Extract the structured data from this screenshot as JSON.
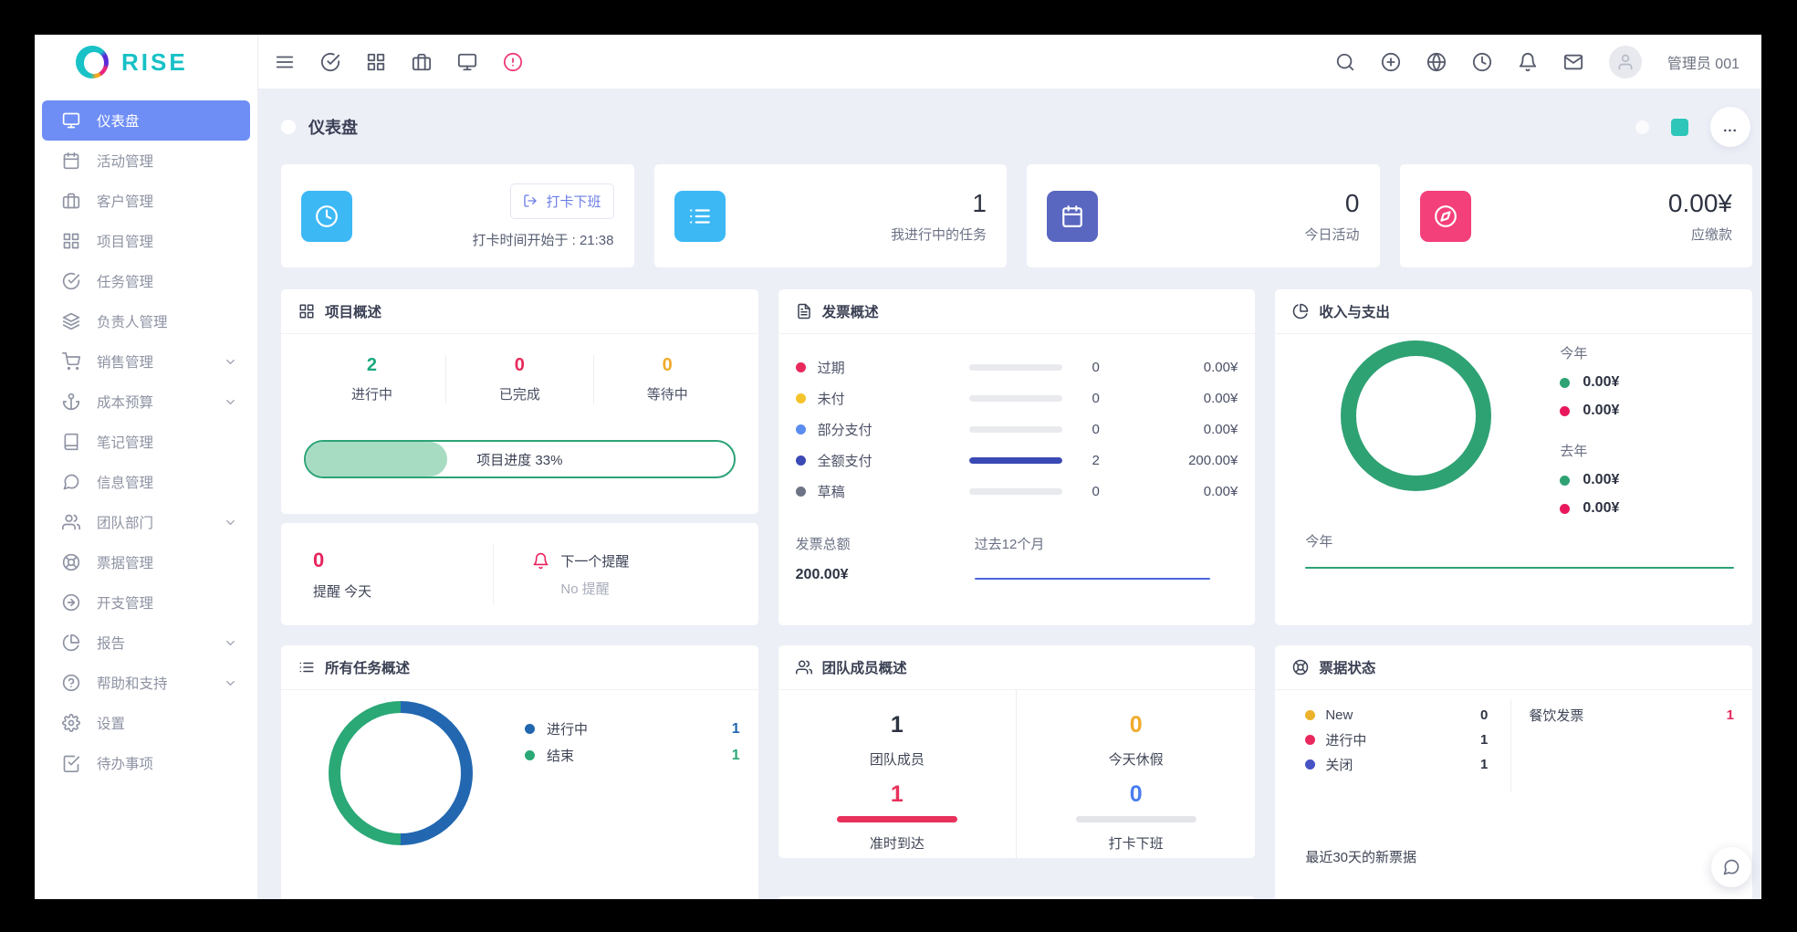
{
  "brand": {
    "name": "RISE"
  },
  "sidebar": {
    "items": [
      {
        "label": "仪表盘",
        "icon": "monitor",
        "active": true
      },
      {
        "label": "活动管理",
        "icon": "calendar"
      },
      {
        "label": "客户管理",
        "icon": "briefcase"
      },
      {
        "label": "项目管理",
        "icon": "grid"
      },
      {
        "label": "任务管理",
        "icon": "check-circle"
      },
      {
        "label": "负责人管理",
        "icon": "layers"
      },
      {
        "label": "销售管理",
        "icon": "shopping-cart",
        "expandable": true
      },
      {
        "label": "成本预算",
        "icon": "anchor",
        "expandable": true
      },
      {
        "label": "笔记管理",
        "icon": "book"
      },
      {
        "label": "信息管理",
        "icon": "message-circle"
      },
      {
        "label": "团队部门",
        "icon": "users",
        "expandable": true
      },
      {
        "label": "票据管理",
        "icon": "life-buoy"
      },
      {
        "label": "开支管理",
        "icon": "arrow-right-circle"
      },
      {
        "label": "报告",
        "icon": "pie-chart",
        "expandable": true
      },
      {
        "label": "帮助和支持",
        "icon": "help-circle",
        "expandable": true
      },
      {
        "label": "设置",
        "icon": "settings"
      },
      {
        "label": "待办事项",
        "icon": "check-square"
      }
    ],
    "active_color": "#6e8ef5"
  },
  "topbar": {
    "left_icons": [
      "menu",
      "check-circle",
      "grid",
      "briefcase",
      "monitor",
      "alert-circle"
    ],
    "right_icons": [
      "search",
      "plus-circle",
      "globe",
      "clock",
      "bell",
      "mail"
    ],
    "alert_icon_color": "#ef3e77",
    "user_name": "管理员 001"
  },
  "page": {
    "title": "仪表盘",
    "more": "...",
    "accent_square_color": "#2ec6b8"
  },
  "stat_cards": {
    "punch": {
      "icon": "clock",
      "icon_color": "#3cb8f5",
      "button_label": "打卡下班",
      "subtitle": "打卡时间开始于 : 21:38"
    },
    "my_tasks": {
      "icon": "list",
      "icon_color": "#3cb8f5",
      "value": "1",
      "label": "我进行中的任务"
    },
    "today_events": {
      "icon": "calendar",
      "icon_color": "#5a67c1",
      "value": "0",
      "label": "今日活动"
    },
    "due": {
      "icon": "compass",
      "icon_color": "#f4407a",
      "value": "0.00¥",
      "label": "应缴款"
    }
  },
  "project_overview": {
    "title": "项目概述",
    "icon": "grid",
    "stats": [
      {
        "value": "2",
        "label": "进行中",
        "color": "#1aa87e"
      },
      {
        "value": "0",
        "label": "已完成",
        "color": "#e9295d"
      },
      {
        "value": "0",
        "label": "等待中",
        "color": "#f0ab2c"
      }
    ],
    "progress_percent": 33,
    "progress_label": "项目进度 33%",
    "progress_border_color": "#2ca377",
    "progress_fill_color": "#a8dcc2"
  },
  "reminders": {
    "today_value": "0",
    "today_label": "提醒 今天",
    "next_label": "下一个提醒",
    "next_value": "No 提醒",
    "bell_color": "#e8235c"
  },
  "invoice_overview": {
    "title": "发票概述",
    "icon": "file-text",
    "rows": [
      {
        "label": "过期",
        "dot_color": "#e9295d",
        "bar_percent": 0,
        "count": "0",
        "amount": "0.00¥"
      },
      {
        "label": "未付",
        "dot_color": "#f5c32b",
        "bar_percent": 0,
        "count": "0",
        "amount": "0.00¥"
      },
      {
        "label": "部分支付",
        "dot_color": "#5b8cf0",
        "bar_percent": 0,
        "count": "0",
        "amount": "0.00¥"
      },
      {
        "label": "全额支付",
        "dot_color": "#3b49b4",
        "bar_percent": 100,
        "count": "2",
        "amount": "200.00¥"
      },
      {
        "label": "草稿",
        "dot_color": "#6d7486",
        "bar_percent": 0,
        "count": "0",
        "amount": "0.00¥"
      }
    ],
    "total_label": "发票总额",
    "total_value": "200.00¥",
    "period_label": "过去12个月",
    "sparkline_color": "#4b66e0"
  },
  "income_expense": {
    "title": "收入与支出",
    "icon": "pie-chart",
    "ring_color": "#2fa274",
    "this_year_label": "今年",
    "last_year_label": "去年",
    "this_year": {
      "income": "0.00¥",
      "expense": "0.00¥"
    },
    "last_year": {
      "income": "0.00¥",
      "expense": "0.00¥"
    },
    "income_color": "#2fa274",
    "expense_color": "#e9185c",
    "footer_label": "今年",
    "footer_line_color": "#2fa274"
  },
  "tasks_overview": {
    "title": "所有任务概述",
    "icon": "list",
    "donut": {
      "segments": [
        {
          "label": "进行中",
          "value": 1,
          "color": "#2267b0"
        },
        {
          "label": "结束",
          "value": 1,
          "color": "#2aa876"
        }
      ]
    },
    "legend": [
      {
        "label": "进行中",
        "value": "1",
        "color": "#2166ae"
      },
      {
        "label": "结束",
        "value": "1",
        "color": "#2aa876"
      }
    ]
  },
  "team_overview": {
    "title": "团队成员概述",
    "icon": "users",
    "cells": [
      {
        "value": "1",
        "label": "团队成员",
        "value_color": "#2e3342"
      },
      {
        "value": "0",
        "label": "今天休假",
        "value_color": "#f0ab2c"
      },
      {
        "value": "1",
        "label": "准时到达",
        "value_color": "#e8315b",
        "bar_color": "#e8315b"
      },
      {
        "value": "0",
        "label": "打卡下班",
        "value_color": "#4a7df0",
        "bar_color": "#e4e5e9"
      }
    ]
  },
  "ticket_status": {
    "title": "票据状态",
    "icon": "life-buoy",
    "statuses": [
      {
        "label": "New",
        "value": "0",
        "dot_color": "#ecb22a"
      },
      {
        "label": "进行中",
        "value": "1",
        "dot_color": "#e9295d"
      },
      {
        "label": "关闭",
        "value": "1",
        "dot_color": "#4753c5"
      }
    ],
    "category_label": "餐饮发票",
    "category_value": "1",
    "category_value_color": "#e9295d",
    "footer": "最近30天的新票据"
  }
}
